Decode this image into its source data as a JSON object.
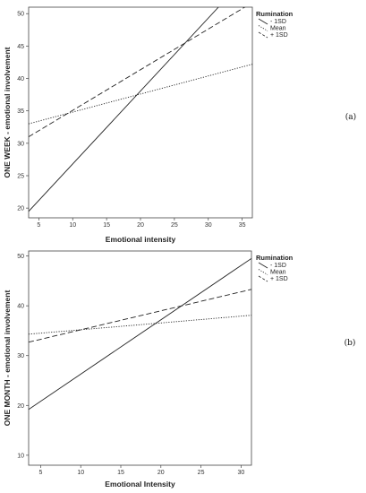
{
  "chart_data": [
    {
      "type": "line",
      "panel_label": "(a)",
      "xlabel": "Emotional intensity",
      "ylabel": "ONE WEEK - emotional involvement",
      "xlim": [
        3.5,
        36.5
      ],
      "ylim": [
        18.5,
        51
      ],
      "xticks": [
        5,
        10,
        15,
        20,
        25,
        30,
        35
      ],
      "yticks": [
        20,
        25,
        30,
        35,
        40,
        45,
        50
      ],
      "legend_title": "Rumination",
      "legend_position": "outside-right",
      "series": [
        {
          "name": "- 1SD",
          "style": "solid",
          "x": [
            3.5,
            31.5
          ],
          "y": [
            19.5,
            51.0
          ]
        },
        {
          "name": "Mean",
          "style": "dotted",
          "x": [
            3.5,
            36.5
          ],
          "y": [
            33.0,
            42.2
          ]
        },
        {
          "name": "+ 1SD",
          "style": "dashed",
          "x": [
            3.5,
            36.5
          ],
          "y": [
            31.0,
            51.7
          ]
        }
      ]
    },
    {
      "type": "line",
      "panel_label": "(b)",
      "xlabel": "Emotional Intensity",
      "ylabel": "ONE MONTH - emotional involvement",
      "xlim": [
        3.5,
        31.3
      ],
      "ylim": [
        8,
        51
      ],
      "xticks": [
        5,
        10,
        15,
        20,
        25,
        30
      ],
      "yticks": [
        10,
        20,
        30,
        40,
        50
      ],
      "legend_title": "Rumination",
      "legend_position": "outside-right",
      "series": [
        {
          "name": "- 1SD",
          "style": "solid",
          "x": [
            3.5,
            31.3
          ],
          "y": [
            19.2,
            49.5
          ]
        },
        {
          "name": "Mean",
          "style": "dotted",
          "x": [
            3.5,
            31.3
          ],
          "y": [
            34.3,
            38.1
          ]
        },
        {
          "name": "+ 1SD",
          "style": "dashed",
          "x": [
            3.5,
            31.3
          ],
          "y": [
            32.7,
            43.3
          ]
        }
      ]
    }
  ]
}
